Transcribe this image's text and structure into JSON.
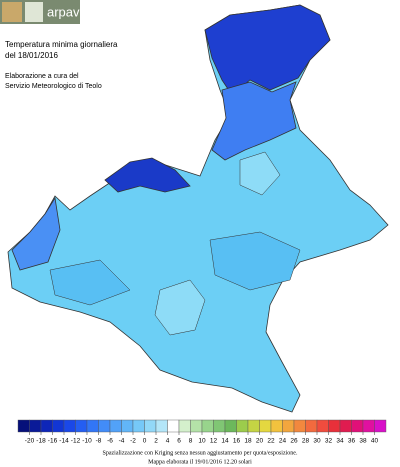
{
  "header": {
    "logo": "arpav",
    "title": "Temperatura minima giornaliera",
    "date": "del 18/01/2016",
    "credit_1": "Elaborazione a cura del",
    "credit_2": "Servizio Meteorologico di Teolo"
  },
  "legend": {
    "values": [
      -20,
      -18,
      -16,
      -14,
      -12,
      -10,
      -8,
      -6,
      -4,
      -2,
      0,
      2,
      4,
      6,
      8,
      10,
      12,
      14,
      16,
      18,
      20,
      22,
      24,
      26,
      28,
      30,
      32,
      34,
      36,
      38,
      40
    ],
    "colors": [
      "#06107a",
      "#0a1a98",
      "#0e26b8",
      "#1236d4",
      "#1a48e8",
      "#245ef2",
      "#3276f6",
      "#428cf8",
      "#52a2f8",
      "#62b6f8",
      "#76c8f8",
      "#92d8f8",
      "#b4e6f8",
      "#ffffff",
      "#d4f0cc",
      "#b4e2a8",
      "#98d48c",
      "#80c674",
      "#6cb85c",
      "#9ccc4c",
      "#c4d444",
      "#e4d840",
      "#f2c23e",
      "#f2a63e",
      "#f2883e",
      "#f26a3e",
      "#f04c3e",
      "#e8303a",
      "#e01c50",
      "#e01078",
      "#e010a0",
      "#d810c8"
    ]
  },
  "footer": {
    "line_1": "Spazializzazione con Kriging senza nessun aggiustamento per quota/esposizione.",
    "line_2": "Mappa elaborata il 19/01/2016 12.20 solari"
  }
}
